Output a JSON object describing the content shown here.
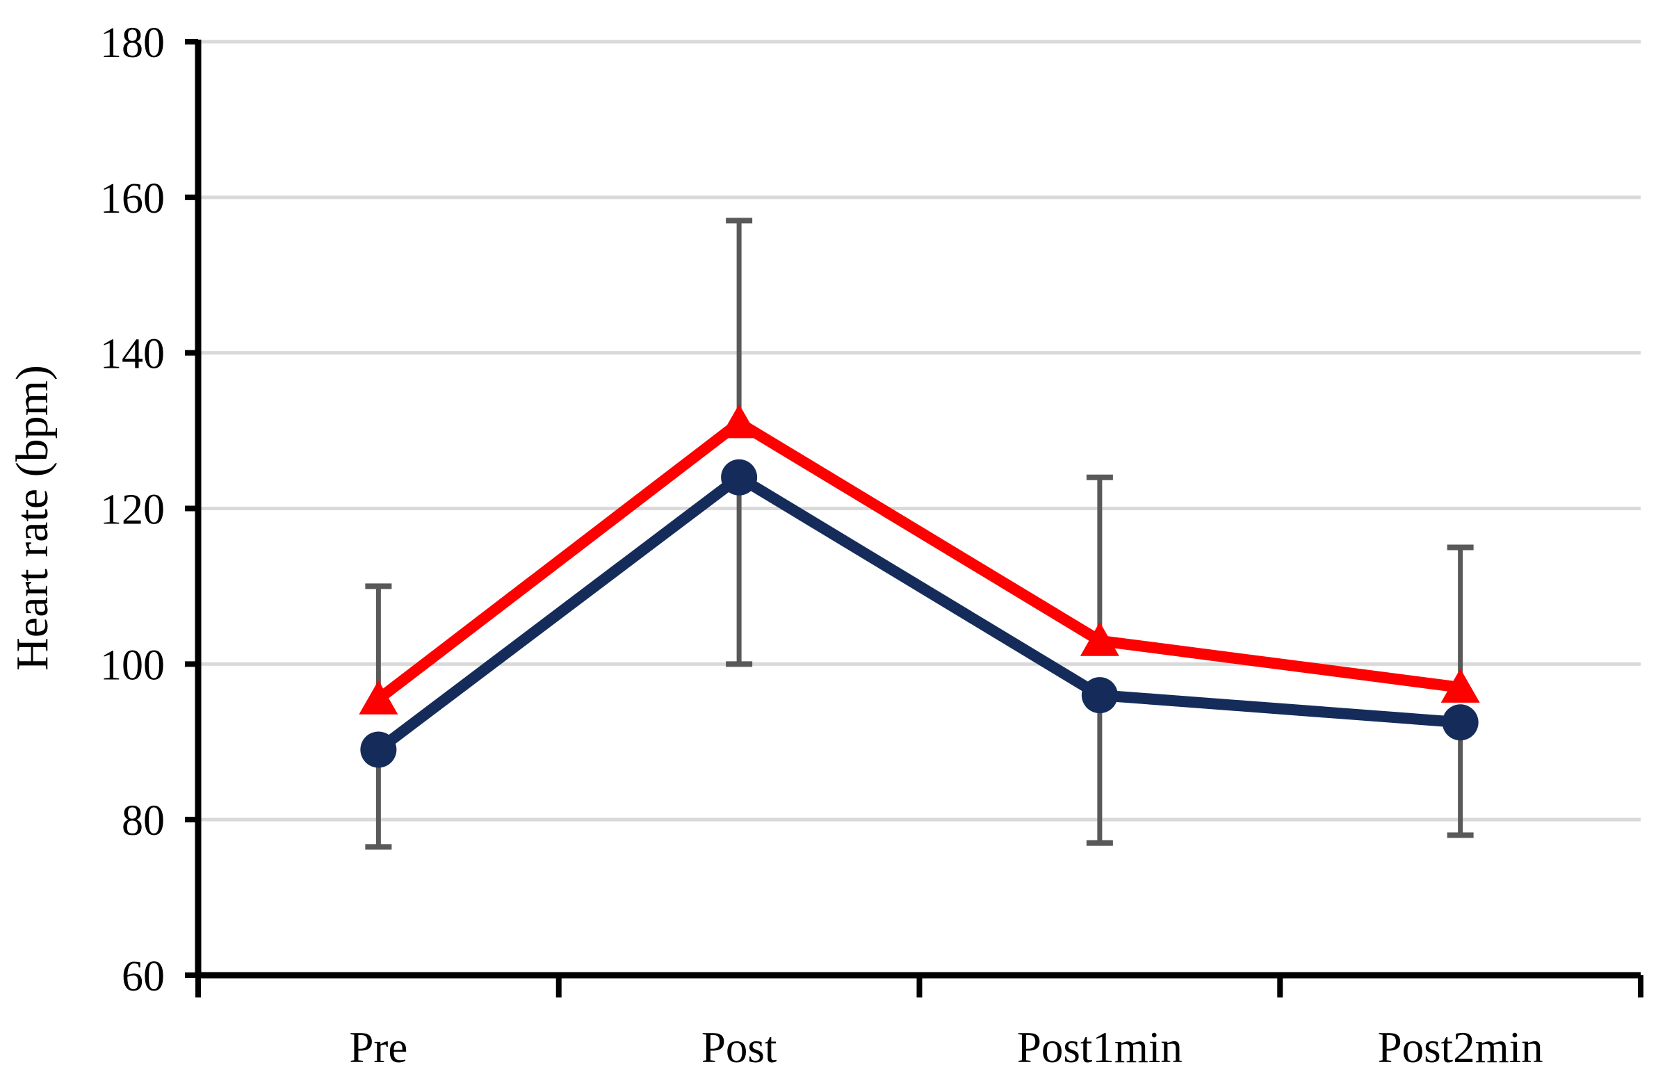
{
  "chart_data": {
    "type": "line",
    "title": "",
    "xlabel": "",
    "ylabel": "Heart rate (bpm)",
    "categories": [
      "Pre",
      "Post",
      "Post1min",
      "Post2min"
    ],
    "series": [
      {
        "name": "series-1-triangle-red",
        "marker": "triangle",
        "color": "#FE0000",
        "values": [
          95.5,
          131,
          103,
          97
        ]
      },
      {
        "name": "series-2-circle-navy",
        "marker": "circle",
        "color": "#152C5B",
        "values": [
          89,
          124,
          96,
          92.5
        ]
      }
    ],
    "error_bars": {
      "color": "#595959",
      "upper_whisker_top_from_triangle_series": [
        110,
        157,
        124,
        115
      ],
      "lower_whisker_bottom_from_circle_series": [
        76.5,
        100,
        77,
        78
      ]
    },
    "ylim": [
      60,
      180
    ],
    "yticks": [
      60,
      80,
      100,
      120,
      140,
      160,
      180
    ],
    "ytick_interval": 20,
    "grid": true,
    "gridline_color": "#D9D9D9",
    "axis_color": "#000000",
    "legend": "none"
  }
}
